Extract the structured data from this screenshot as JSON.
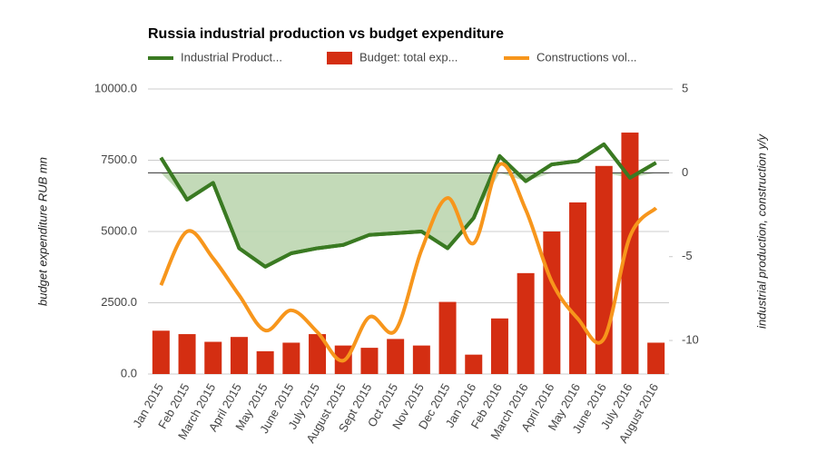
{
  "chart_data": {
    "type": "bar-line",
    "title": "Russia industrial production vs budget expenditure",
    "y_label": "budget expenditure RUB mn",
    "y2_label": "industrial production, construction y/y",
    "categories": [
      "Jan 2015",
      "Feb 2015",
      "March 2015",
      "April 2015",
      "May 2015",
      "June 2015",
      "July 2015",
      "August 2015",
      "Sept 2015",
      "Oct 2015",
      "Nov 2015",
      "Dec 2015",
      "Jan 2016",
      "Feb 2016",
      "March 2016",
      "April 2016",
      "May 2016",
      "June 2016",
      "July 2016",
      "August 2016"
    ],
    "ylim": [
      0,
      10000
    ],
    "yticks": [
      {
        "value": 0,
        "label": "0.0"
      },
      {
        "value": 2500,
        "label": "2500.0"
      },
      {
        "value": 5000,
        "label": "5000.0"
      },
      {
        "value": 7500,
        "label": "7500.0"
      },
      {
        "value": 10000,
        "label": "10000.0"
      }
    ],
    "y2lim": [
      -12,
      5
    ],
    "y2ticks": [
      -10,
      -5,
      0,
      5
    ],
    "grid": true,
    "series": [
      {
        "name": "Industrial Product...",
        "type": "area-line",
        "axis": "y2",
        "color": "#3a7a22",
        "fill": "#bcd6b0",
        "values": [
          0.9,
          -1.6,
          -0.6,
          -4.5,
          -5.6,
          -4.8,
          -4.5,
          -4.3,
          -3.7,
          -3.6,
          -3.5,
          -4.5,
          -2.7,
          1.0,
          -0.5,
          0.5,
          0.7,
          1.7,
          -0.3,
          0.6
        ]
      },
      {
        "name": "Budget: total exp...",
        "type": "bar",
        "axis": "y",
        "color": "#d42e12",
        "values": [
          1520,
          1400,
          1130,
          1300,
          800,
          1100,
          1400,
          1000,
          920,
          1230,
          1000,
          2530,
          680,
          1950,
          3540,
          5000,
          6020,
          7300,
          8470,
          1100
        ]
      },
      {
        "name": "Constructions vol...",
        "type": "smooth-line",
        "axis": "y2",
        "color": "#f7961c",
        "values": [
          -6.7,
          -3.5,
          -5.1,
          -7.3,
          -9.4,
          -8.2,
          -9.5,
          -11.2,
          -8.6,
          -9.4,
          -4.6,
          -1.5,
          -4.2,
          0.5,
          -2.2,
          -6.5,
          -8.7,
          -9.9,
          -3.8,
          -2.1
        ]
      }
    ]
  }
}
